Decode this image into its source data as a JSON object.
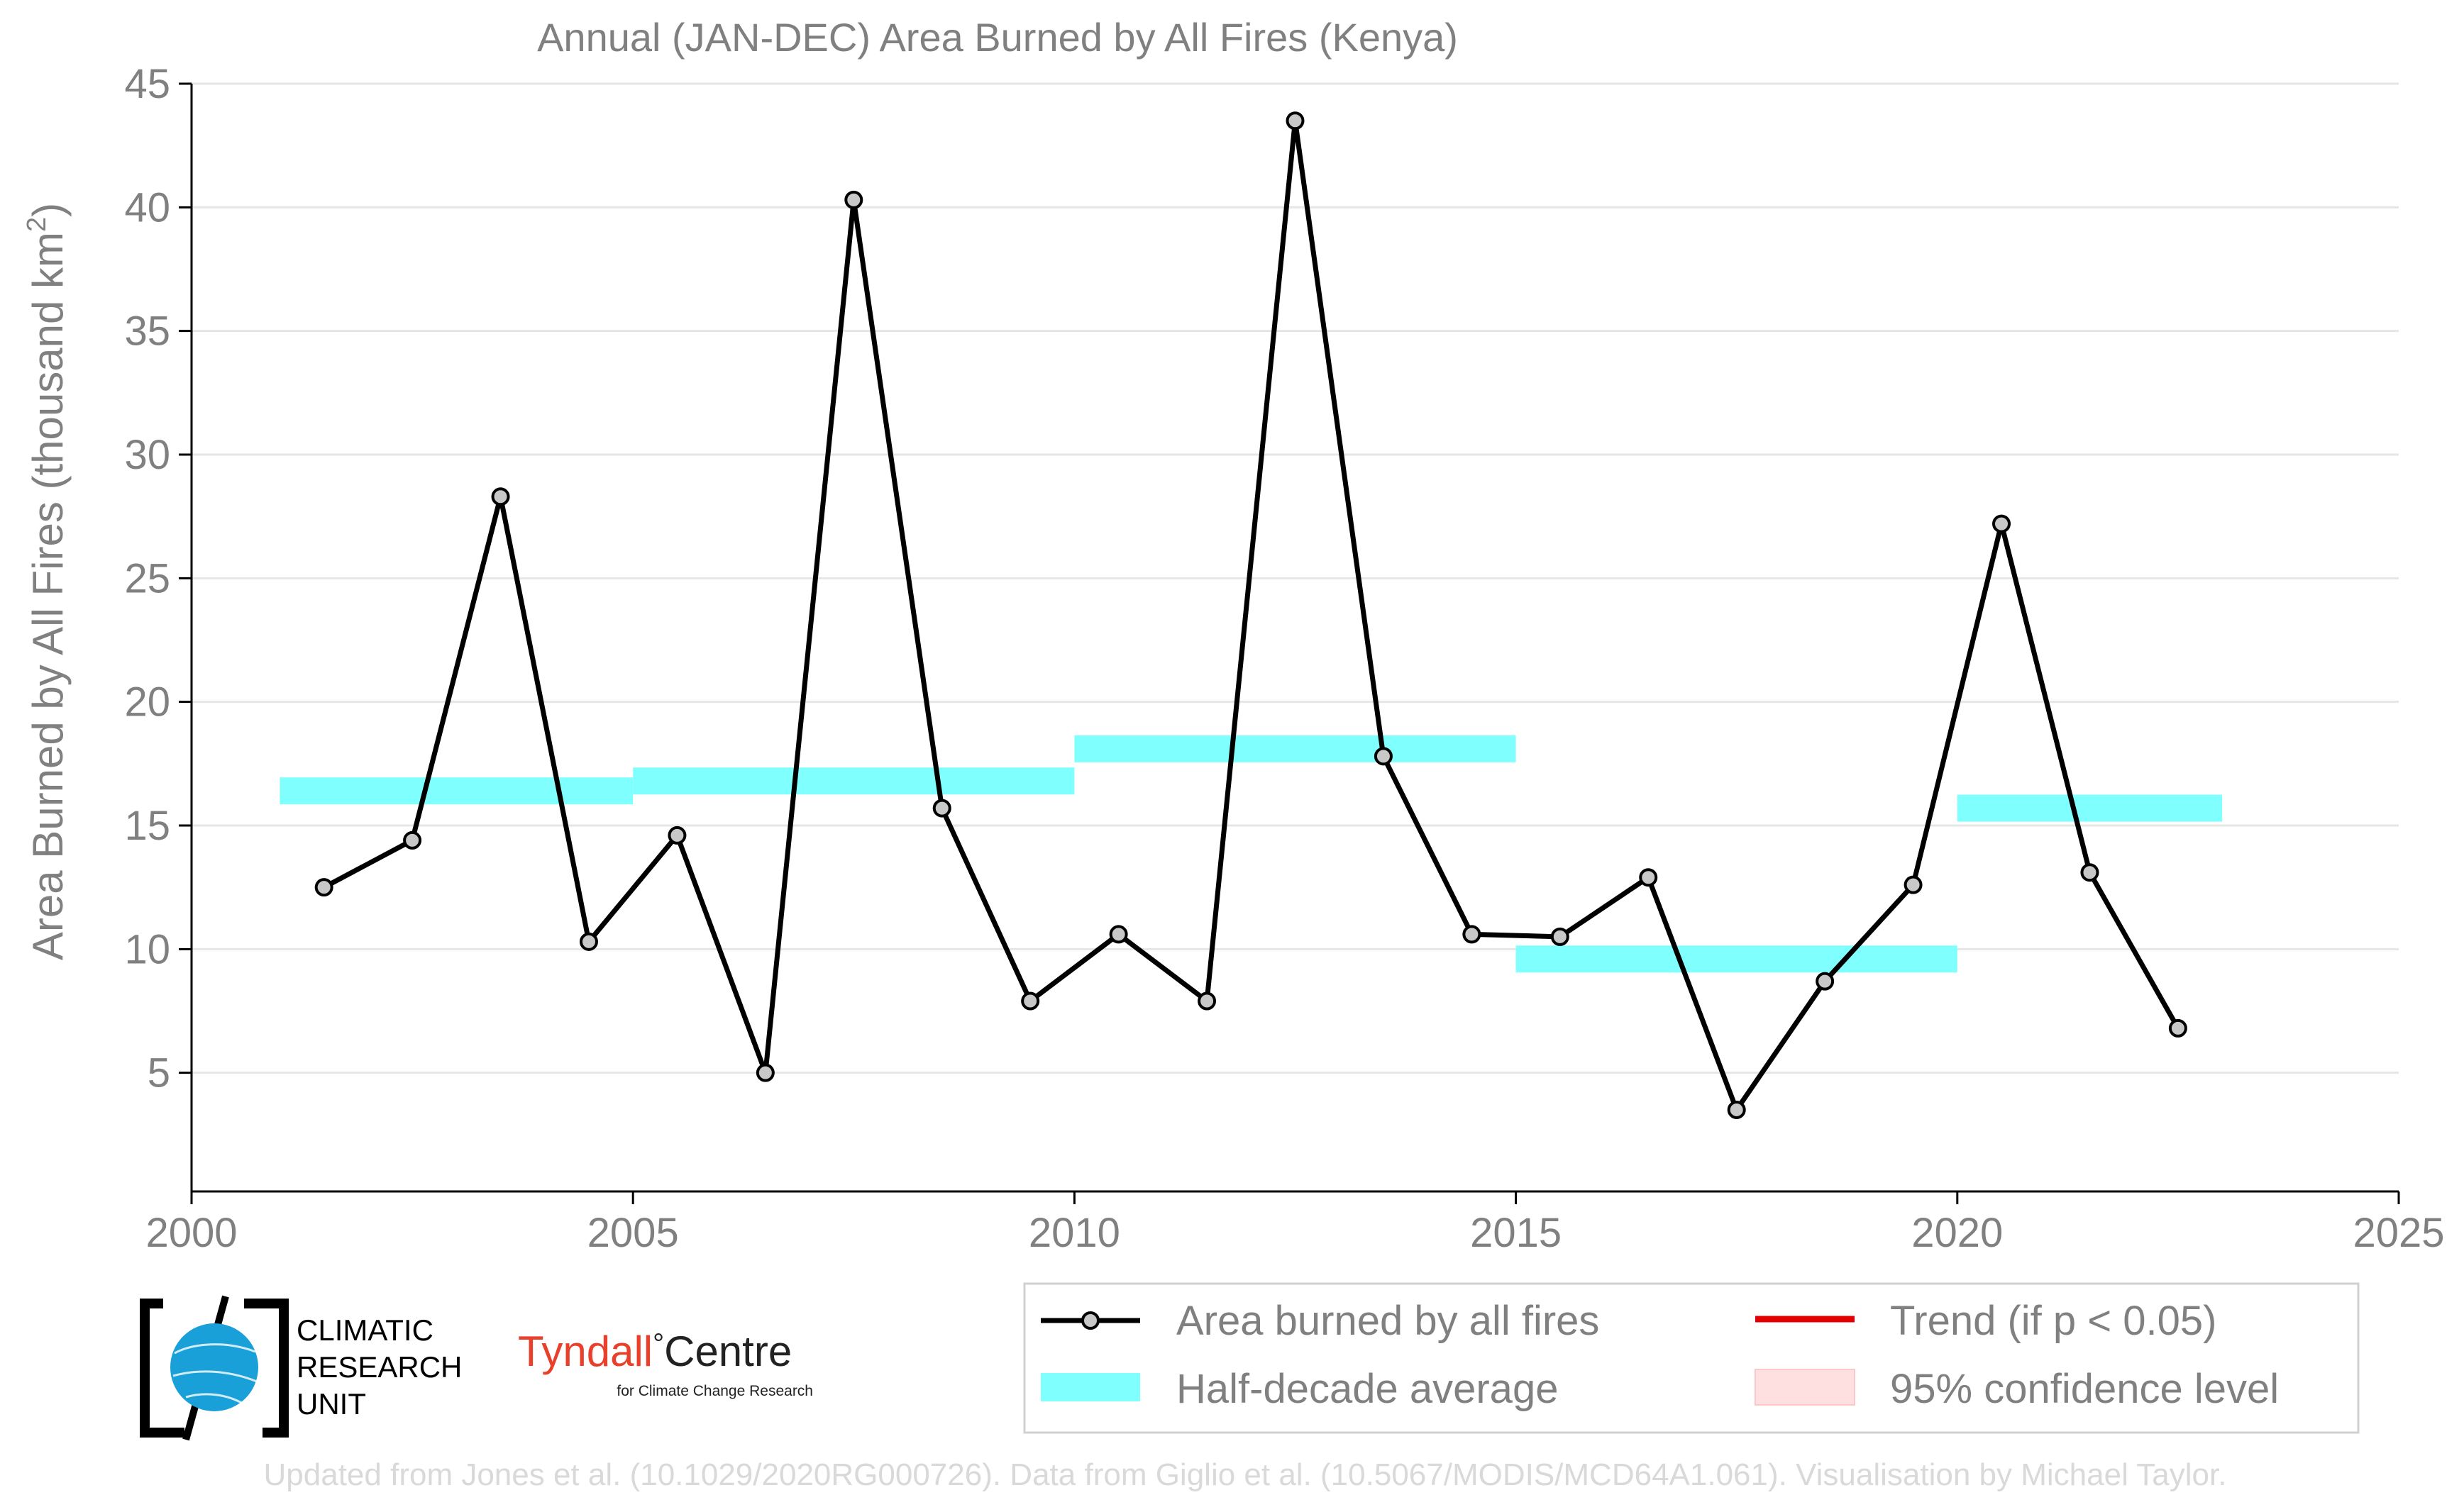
{
  "colors": {
    "text": "#808080",
    "series_line": "#000000",
    "marker_fill": "#c8c8c8",
    "half_decade": "#80ffff",
    "trend": "#e00000",
    "confidence": "#ffe0e0",
    "grid": "#e6e6e6",
    "credit_text": "#d9d9d9",
    "cru_globe": "#1aa0d8",
    "tyndall_red": "#e8402a"
  },
  "chart_data": {
    "type": "line",
    "title": "Annual (JAN-DEC) Area Burned by All Fires (Kenya)",
    "ylabel_main": "Area Burned by All Fires (thousand km",
    "ylabel_sup": "2",
    "ylabel_close": ")",
    "xlabel": "",
    "xlim": [
      2000,
      2025
    ],
    "ylim": [
      0.2,
      45
    ],
    "xticks": [
      2000,
      2005,
      2010,
      2015,
      2020,
      2025
    ],
    "yticks": [
      5,
      10,
      15,
      20,
      25,
      30,
      35,
      40,
      45
    ],
    "grid": "horizontal",
    "series": [
      {
        "name": "Area burned by all fires",
        "x": [
          2001.5,
          2002.5,
          2003.5,
          2004.5,
          2005.5,
          2006.5,
          2007.5,
          2008.5,
          2009.5,
          2010.5,
          2011.5,
          2012.5,
          2013.5,
          2014.5,
          2015.5,
          2016.5,
          2017.5,
          2018.5,
          2019.5,
          2020.5,
          2021.5,
          2022.5
        ],
        "values": [
          12.5,
          14.4,
          28.3,
          10.3,
          14.6,
          5.0,
          40.3,
          15.7,
          7.9,
          10.6,
          7.9,
          43.5,
          17.8,
          10.6,
          10.5,
          12.9,
          3.5,
          8.7,
          12.6,
          27.2,
          13.1,
          6.8
        ]
      }
    ],
    "half_decade_average": [
      {
        "start": 2001,
        "end": 2005,
        "value": 16.4
      },
      {
        "start": 2005,
        "end": 2010,
        "value": 16.8
      },
      {
        "start": 2010,
        "end": 2015,
        "value": 18.1
      },
      {
        "start": 2015,
        "end": 2020,
        "value": 9.6
      },
      {
        "start": 2020,
        "end": 2023,
        "value": 15.7
      }
    ],
    "legend": {
      "placement": "bottom-right",
      "entries": [
        {
          "label": "Area burned by all fires",
          "kind": "line-marker"
        },
        {
          "label": "Trend (if p < 0.05)",
          "kind": "trend"
        },
        {
          "label": "Half-decade average",
          "kind": "band"
        },
        {
          "label": "95% confidence level",
          "kind": "confidence"
        }
      ]
    }
  },
  "logos": {
    "cru": {
      "line1": "CLIMATIC",
      "line2": "RESEARCH",
      "line3": "UNIT"
    },
    "tyndall": {
      "name_main": "Tyndall",
      "degree": "°",
      "name_centre": "Centre",
      "tagline": "for Climate Change Research"
    }
  },
  "credit": "Updated from Jones et al. (10.1029/2020RG000726). Data from Giglio et al. (10.5067/MODIS/MCD64A1.061). Visualisation by Michael Taylor."
}
